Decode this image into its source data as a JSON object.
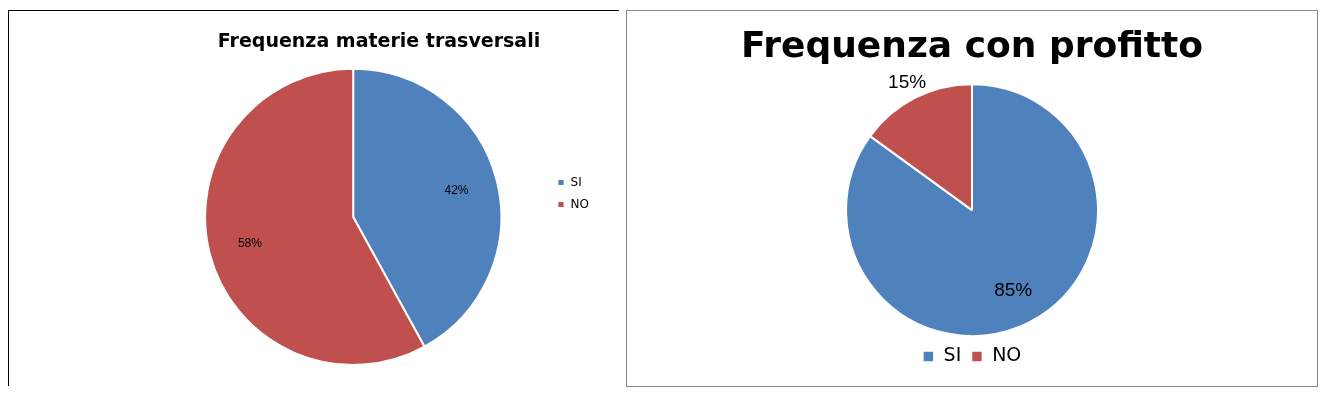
{
  "chart_data": [
    {
      "type": "pie",
      "title": "Frequenza materie trasversali",
      "categories": [
        "SI",
        "NO"
      ],
      "values": [
        42,
        58
      ],
      "value_labels": [
        "42%",
        "58%"
      ],
      "colors": [
        "#4f81bd",
        "#c0504d"
      ],
      "legend": "right"
    },
    {
      "type": "pie",
      "title": "Frequenza con profitto",
      "categories": [
        "SI",
        "NO"
      ],
      "values": [
        85,
        15
      ],
      "value_labels": [
        "85%",
        "15%"
      ],
      "colors": [
        "#4f81bd",
        "#c0504d"
      ],
      "legend": "bottom"
    }
  ]
}
